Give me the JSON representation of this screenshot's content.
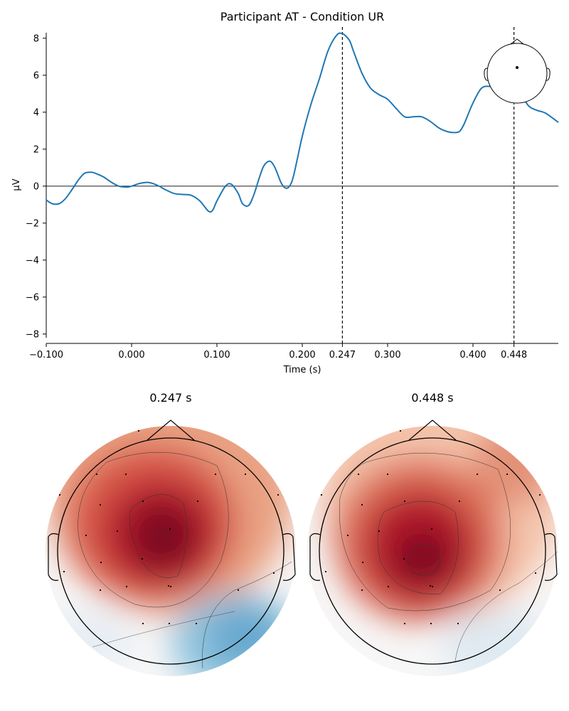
{
  "chart_data": [
    {
      "type": "line",
      "title": "Participant AT - Condition UR",
      "xlabel": "Time (s)",
      "ylabel": "µV",
      "xlim": [
        -0.1,
        0.5
      ],
      "ylim": [
        -8.2,
        8.3
      ],
      "x_ticks": [
        {
          "value": -0.1,
          "label": "−0.100"
        },
        {
          "value": 0.0,
          "label": "0.000"
        },
        {
          "value": 0.1,
          "label": "0.100"
        },
        {
          "value": 0.2,
          "label": "0.200"
        },
        {
          "value": 0.247,
          "label": "0.247"
        },
        {
          "value": 0.3,
          "label": "0.300"
        },
        {
          "value": 0.4,
          "label": "0.400"
        },
        {
          "value": 0.448,
          "label": "0.448"
        }
      ],
      "y_ticks": [
        {
          "value": 8,
          "label": "8"
        },
        {
          "value": 6,
          "label": "6"
        },
        {
          "value": 4,
          "label": "4"
        },
        {
          "value": 2,
          "label": "2"
        },
        {
          "value": 0,
          "label": "0"
        },
        {
          "value": -2,
          "label": "−2"
        },
        {
          "value": -4,
          "label": "−4"
        },
        {
          "value": -6,
          "label": "−6"
        },
        {
          "value": -8,
          "label": "−8"
        }
      ],
      "zero_line": 0,
      "vlines": [
        0.247,
        0.448
      ],
      "series": [
        {
          "color": "#1f77b4",
          "x": [
            -0.1,
            -0.093,
            -0.085,
            -0.078,
            -0.07,
            -0.062,
            -0.055,
            -0.047,
            -0.04,
            -0.033,
            -0.025,
            -0.015,
            -0.005,
            0.0,
            0.01,
            0.02,
            0.03,
            0.04,
            0.05,
            0.06,
            0.07,
            0.08,
            0.09,
            0.095,
            0.1,
            0.11,
            0.117,
            0.125,
            0.13,
            0.137,
            0.143,
            0.15,
            0.155,
            0.162,
            0.168,
            0.175,
            0.18,
            0.185,
            0.19,
            0.2,
            0.21,
            0.22,
            0.23,
            0.24,
            0.247,
            0.255,
            0.26,
            0.27,
            0.28,
            0.29,
            0.3,
            0.31,
            0.32,
            0.33,
            0.34,
            0.35,
            0.36,
            0.37,
            0.38,
            0.385,
            0.39,
            0.4,
            0.41,
            0.42,
            0.43,
            0.44,
            0.448,
            0.455,
            0.465,
            0.475,
            0.485,
            0.5
          ],
          "values": [
            -0.75,
            -0.95,
            -0.95,
            -0.7,
            -0.2,
            0.35,
            0.7,
            0.75,
            0.65,
            0.5,
            0.25,
            0.0,
            -0.05,
            0.0,
            0.15,
            0.2,
            0.05,
            -0.2,
            -0.4,
            -0.45,
            -0.5,
            -0.8,
            -1.35,
            -1.3,
            -0.8,
            0.0,
            0.1,
            -0.4,
            -0.95,
            -1.05,
            -0.5,
            0.5,
            1.1,
            1.35,
            1.0,
            0.2,
            -0.1,
            0.0,
            0.6,
            2.7,
            4.4,
            5.8,
            7.3,
            8.15,
            8.25,
            7.9,
            7.3,
            6.1,
            5.3,
            4.95,
            4.7,
            4.2,
            3.75,
            3.75,
            3.75,
            3.5,
            3.15,
            2.95,
            2.9,
            3.0,
            3.4,
            4.5,
            5.3,
            5.4,
            5.4,
            5.5,
            5.45,
            5.1,
            4.35,
            4.1,
            3.95,
            3.45
          ]
        }
      ],
      "sensor_inset": "head-outline-with-single-sensor-dot"
    },
    {
      "type": "heatmap",
      "title": "0.247 s",
      "description": "scalp topography",
      "colormap": [
        "#2166ac",
        "#67a9cf",
        "#d1e5f0",
        "#f7f7f7",
        "#fddbc7",
        "#ef8a62",
        "#b2182b",
        "#67001f"
      ]
    },
    {
      "type": "heatmap",
      "title": "0.448 s",
      "description": "scalp topography",
      "colormap": [
        "#2166ac",
        "#67a9cf",
        "#d1e5f0",
        "#f7f7f7",
        "#fddbc7",
        "#ef8a62",
        "#b2182b",
        "#67001f"
      ]
    }
  ]
}
